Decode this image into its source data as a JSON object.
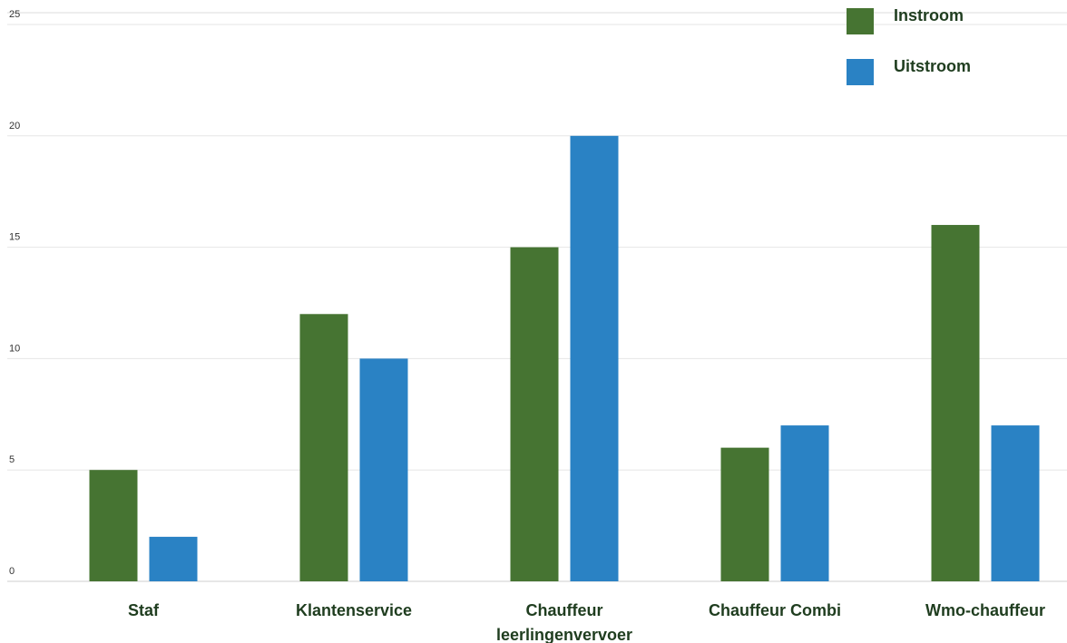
{
  "chart_data": {
    "type": "bar",
    "categories": [
      "Staf",
      "Klantenservice",
      "Chauffeur leerlingenvervoer",
      "Chauffeur Combi",
      "Wmo-chauffeur"
    ],
    "category_lines": [
      [
        "Staf"
      ],
      [
        "Klantenservice"
      ],
      [
        "Chauffeur",
        "leerlingenvervoer"
      ],
      [
        "Chauffeur Combi"
      ],
      [
        "Wmo-chauffeur"
      ]
    ],
    "series": [
      {
        "name": "Instroom",
        "color": "#467432",
        "values": [
          5,
          12,
          15,
          6,
          16
        ]
      },
      {
        "name": "Uitstroom",
        "color": "#2a82c4",
        "values": [
          2,
          10,
          20,
          7,
          7
        ]
      }
    ],
    "ylim": [
      0,
      25
    ],
    "yticks": [
      0,
      5,
      10,
      15,
      20,
      25
    ],
    "title": "",
    "xlabel": "",
    "ylabel": "",
    "grid": true,
    "legend_position": "top-right"
  }
}
